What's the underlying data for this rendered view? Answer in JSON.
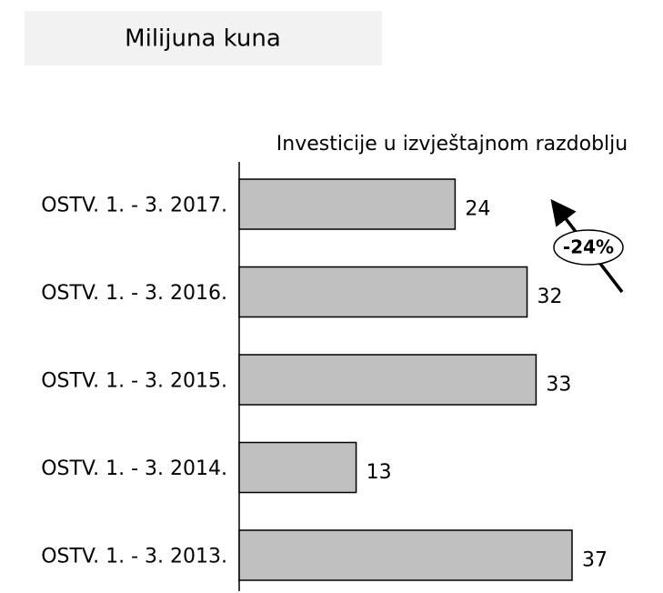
{
  "chart_data": {
    "type": "bar",
    "orientation": "horizontal",
    "title": "Milijuna kuna",
    "subtitle": "Investicije u izvještajnom  razdoblju",
    "categories": [
      "OSTV. 1. - 3. 2017.",
      "OSTV. 1. - 3. 2016.",
      "OSTV. 1. - 3. 2015.",
      "OSTV. 1. - 3. 2014.",
      "OSTV. 1. - 3. 2013."
    ],
    "values": [
      24,
      32,
      33,
      13,
      37
    ],
    "color": "#c0c0c0",
    "annotation": "-24%"
  }
}
